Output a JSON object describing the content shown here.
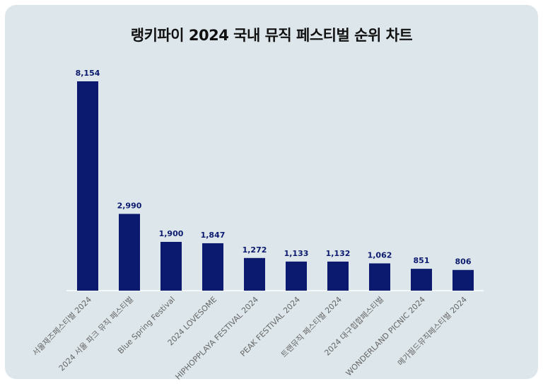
{
  "chart_data": {
    "type": "bar",
    "title": "랭키파이 2024 국내 뮤직 페스티벌 순위 차트",
    "categories": [
      "서울재즈페스티벌 2024",
      "2024 서울 파크 뮤직 페스티벌",
      "Blue Spring Festival",
      "2024 LOVESOME",
      "HIPHOPPLAYA FESTIVAL 2024",
      "PEAK FESTIVAL 2024",
      "트랜뮤직 페스티벌 2024",
      "2024 대구힙합페스티벌",
      "WONDERLAND PICNIC 2024",
      "메가필드뮤직페스티벌 2024"
    ],
    "values": [
      8154,
      2990,
      1900,
      1847,
      1272,
      1133,
      1132,
      1062,
      851,
      806
    ],
    "value_labels": [
      "8,154",
      "2,990",
      "1,900",
      "1,847",
      "1,272",
      "1,133",
      "1,132",
      "1,062",
      "851",
      "806"
    ],
    "ylim": [
      0,
      8154
    ],
    "grid": false,
    "legend": "none",
    "bar_color": "#0b1a6e",
    "background_color": "#dde6ea"
  }
}
